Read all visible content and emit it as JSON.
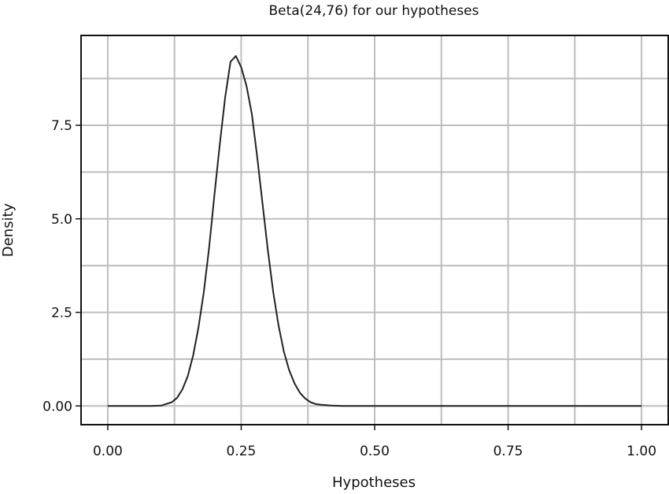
{
  "chart_data": {
    "type": "line",
    "title": "Beta(24,76) for our hypotheses",
    "xlabel": "Hypotheses",
    "ylabel": "Density",
    "xlim": [
      -0.05,
      1.05
    ],
    "ylim": [
      -0.5,
      9.9
    ],
    "x_ticks": [
      {
        "value": 0.0,
        "label": "0.00"
      },
      {
        "value": 0.25,
        "label": "0.25"
      },
      {
        "value": 0.5,
        "label": "0.50"
      },
      {
        "value": 0.75,
        "label": "0.75"
      },
      {
        "value": 1.0,
        "label": "1.00"
      }
    ],
    "y_ticks": [
      {
        "value": 0.0,
        "label": "0.00"
      },
      {
        "value": 2.5,
        "label": "2.5"
      },
      {
        "value": 5.0,
        "label": "5.0"
      },
      {
        "value": 7.5,
        "label": "7.5"
      }
    ],
    "x_minor_grid": [
      0.125,
      0.375,
      0.625,
      0.875
    ],
    "y_minor_grid": [
      1.25,
      3.75,
      6.25,
      8.75
    ],
    "grid": true,
    "line_color": "#222222",
    "grid_color": "#bdbdbd",
    "series": [
      {
        "x": [
          0.0,
          0.02,
          0.04,
          0.06,
          0.08,
          0.1,
          0.12,
          0.13,
          0.14,
          0.15,
          0.16,
          0.17,
          0.18,
          0.19,
          0.2,
          0.21,
          0.22,
          0.23,
          0.24,
          0.25,
          0.26,
          0.27,
          0.28,
          0.29,
          0.3,
          0.31,
          0.32,
          0.33,
          0.34,
          0.35,
          0.36,
          0.37,
          0.38,
          0.39,
          0.4,
          0.42,
          0.44,
          0.46,
          0.5,
          0.6,
          0.7,
          0.8,
          0.9,
          1.0
        ],
        "y": [
          0.0,
          0.0,
          0.0,
          0.0,
          0.0,
          0.01,
          0.1,
          0.22,
          0.45,
          0.8,
          1.35,
          2.1,
          3.05,
          4.25,
          5.65,
          7.0,
          8.25,
          9.2,
          9.35,
          9.05,
          8.55,
          7.8,
          6.65,
          5.4,
          4.15,
          3.05,
          2.15,
          1.45,
          0.95,
          0.6,
          0.35,
          0.2,
          0.1,
          0.05,
          0.03,
          0.01,
          0.0,
          0.0,
          0.0,
          0.0,
          0.0,
          0.0,
          0.0,
          0.0
        ]
      }
    ]
  }
}
